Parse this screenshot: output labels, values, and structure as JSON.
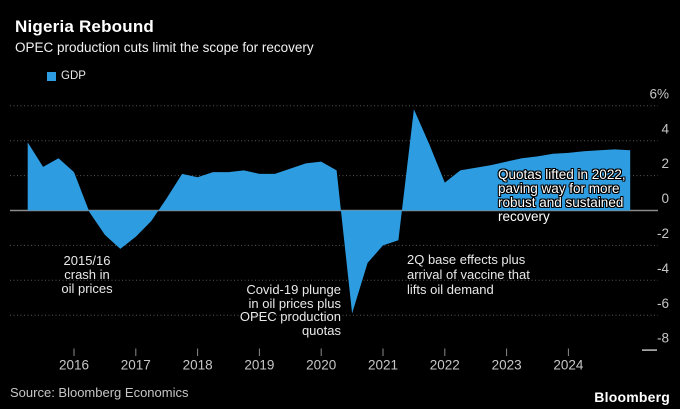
{
  "header": {
    "title": "Nigeria Rebound",
    "subtitle": "OPEC production cuts limit the scope for recovery"
  },
  "legend": {
    "label": "GDP",
    "swatch_color": "#2e9ce0"
  },
  "chart_data": {
    "type": "area",
    "title": "Nigeria Rebound",
    "xlabel": "",
    "ylabel": "GDP (%)",
    "xlim": [
      2015.2,
      2025.4
    ],
    "ylim": [
      -8,
      6
    ],
    "grid": "dotted horizontal gridlines, solid zero line",
    "legend_position": "top-left",
    "series": [
      {
        "name": "GDP",
        "color": "#2e9ce0",
        "points": [
          [
            2015.25,
            3.9
          ],
          [
            2015.5,
            2.5
          ],
          [
            2015.75,
            3.0
          ],
          [
            2016.0,
            2.2
          ],
          [
            2016.25,
            -0.1
          ],
          [
            2016.5,
            -1.4
          ],
          [
            2016.75,
            -2.2
          ],
          [
            2017.0,
            -1.5
          ],
          [
            2017.25,
            -0.6
          ],
          [
            2017.5,
            0.7
          ],
          [
            2017.75,
            2.1
          ],
          [
            2018.0,
            1.9
          ],
          [
            2018.25,
            2.2
          ],
          [
            2018.5,
            2.2
          ],
          [
            2018.75,
            2.3
          ],
          [
            2019.0,
            2.1
          ],
          [
            2019.25,
            2.1
          ],
          [
            2019.5,
            2.4
          ],
          [
            2019.75,
            2.7
          ],
          [
            2020.0,
            2.8
          ],
          [
            2020.25,
            2.3
          ],
          [
            2020.5,
            -5.9
          ],
          [
            2020.75,
            -3.0
          ],
          [
            2021.0,
            -2.0
          ],
          [
            2021.25,
            -1.7
          ],
          [
            2021.5,
            5.8
          ],
          [
            2021.75,
            3.8
          ],
          [
            2022.0,
            1.6
          ],
          [
            2022.25,
            2.3
          ],
          [
            2022.5,
            2.45
          ],
          [
            2022.75,
            2.6
          ],
          [
            2023.0,
            2.8
          ],
          [
            2023.25,
            3.0
          ],
          [
            2023.5,
            3.1
          ],
          [
            2023.75,
            3.25
          ],
          [
            2024.0,
            3.3
          ],
          [
            2024.25,
            3.4
          ],
          [
            2024.5,
            3.45
          ],
          [
            2024.75,
            3.5
          ],
          [
            2025.0,
            3.45
          ]
        ]
      }
    ],
    "x_ticks": [
      "2016",
      "2017",
      "2018",
      "2019",
      "2020",
      "2021",
      "2022",
      "2023",
      "2024"
    ],
    "y_ticks": [
      {
        "label": "6%",
        "value": 6
      },
      {
        "label": "4",
        "value": 4
      },
      {
        "label": "2",
        "value": 2
      },
      {
        "label": "0",
        "value": 0
      },
      {
        "label": "-2",
        "value": -2
      },
      {
        "label": "-4",
        "value": -4
      },
      {
        "label": "-6",
        "value": -6
      },
      {
        "label": "-8",
        "value": -8
      }
    ],
    "annotations": [
      {
        "id": "crash-2015-16",
        "text": "2015/16\ncrash in\noil prices"
      },
      {
        "id": "covid-plunge",
        "text": "Covid-19 plunge\nin oil prices plus\nOPEC production\nquotas"
      },
      {
        "id": "base-effects",
        "text": "2Q base effects plus\narrival of vaccine that\nlifts oil demand"
      },
      {
        "id": "quotas-lifted",
        "text": "Quotas lifted in 2022,\npaving way for more\nrobust and sustained\nrecovery"
      }
    ]
  },
  "footer": {
    "source": "Source: Bloomberg Economics",
    "logo": "Bloomberg"
  },
  "colors": {
    "background": "#000000",
    "area": "#2e9ce0",
    "gridline": "#565656",
    "zero_line": "#8a8a8a",
    "axis_text": "#c6c6c6",
    "annotation_text": "#e9e9e9",
    "title_text": "#ffffff"
  }
}
